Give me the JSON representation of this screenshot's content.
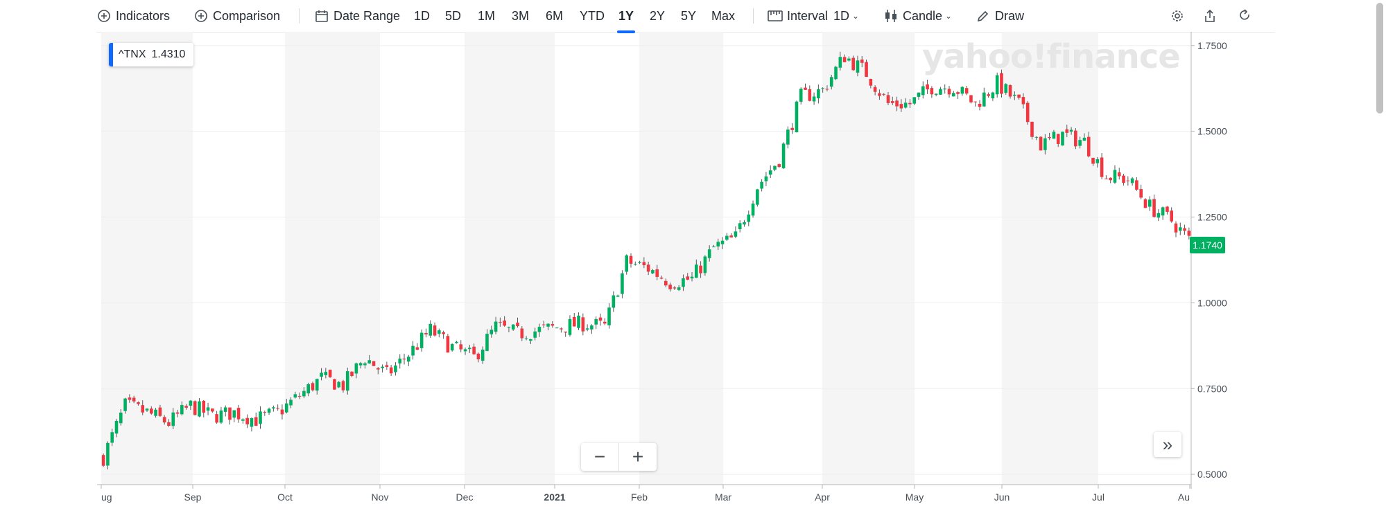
{
  "toolbar": {
    "indicators": "Indicators",
    "comparison": "Comparison",
    "date_range": "Date Range",
    "ranges": [
      "1D",
      "5D",
      "1M",
      "3M",
      "6M",
      "YTD",
      "1Y",
      "2Y",
      "5Y",
      "Max"
    ],
    "active_range": "1Y",
    "interval_label": "Interval",
    "interval_value": "1D",
    "chart_type": "Candle",
    "draw": "Draw",
    "icons": [
      "plus-circle-icon",
      "calendar-icon",
      "ruler-icon",
      "candle-icon",
      "pencil-icon",
      "gear-icon",
      "share-icon",
      "reset-icon"
    ]
  },
  "legend": {
    "symbol": "^TNX",
    "value": "1.4310"
  },
  "watermark": "yahoo!finance",
  "price_tag": "1.1740",
  "zoom": {
    "minus": "−",
    "plus": "+"
  },
  "forward_button": "»",
  "colors": {
    "up": "#00b061",
    "down": "#f0363f",
    "accent": "#0f69ff",
    "band": "#f5f5f5"
  },
  "chart_data": {
    "type": "candlestick",
    "symbol": "^TNX",
    "ylim": [
      0.47,
      1.79
    ],
    "y_ticks": [
      "0.5000",
      "0.7500",
      "1.0000",
      "1.2500",
      "1.5000",
      "1.7500"
    ],
    "x_ticks": [
      "ug",
      "Sep",
      "Oct",
      "Nov",
      "Dec",
      "2021",
      "Feb",
      "Mar",
      "Apr",
      "May",
      "Jun",
      "Jul",
      "Au"
    ],
    "last_price": "1.1740",
    "grid": true,
    "weekly_close": [
      0.55,
      0.7,
      0.68,
      0.65,
      0.7,
      0.67,
      0.68,
      0.66,
      0.68,
      0.73,
      0.78,
      0.76,
      0.84,
      0.79,
      0.85,
      0.92,
      0.87,
      0.84,
      0.93,
      0.91,
      0.92,
      0.93,
      0.94,
      0.93,
      1.12,
      1.1,
      1.06,
      1.07,
      1.16,
      1.19,
      1.34,
      1.42,
      1.6,
      1.62,
      1.72,
      1.67,
      1.58,
      1.58,
      1.63,
      1.63,
      1.58,
      1.64,
      1.58,
      1.46,
      1.49,
      1.47,
      1.37,
      1.36,
      1.28,
      1.24,
      1.17
    ]
  }
}
